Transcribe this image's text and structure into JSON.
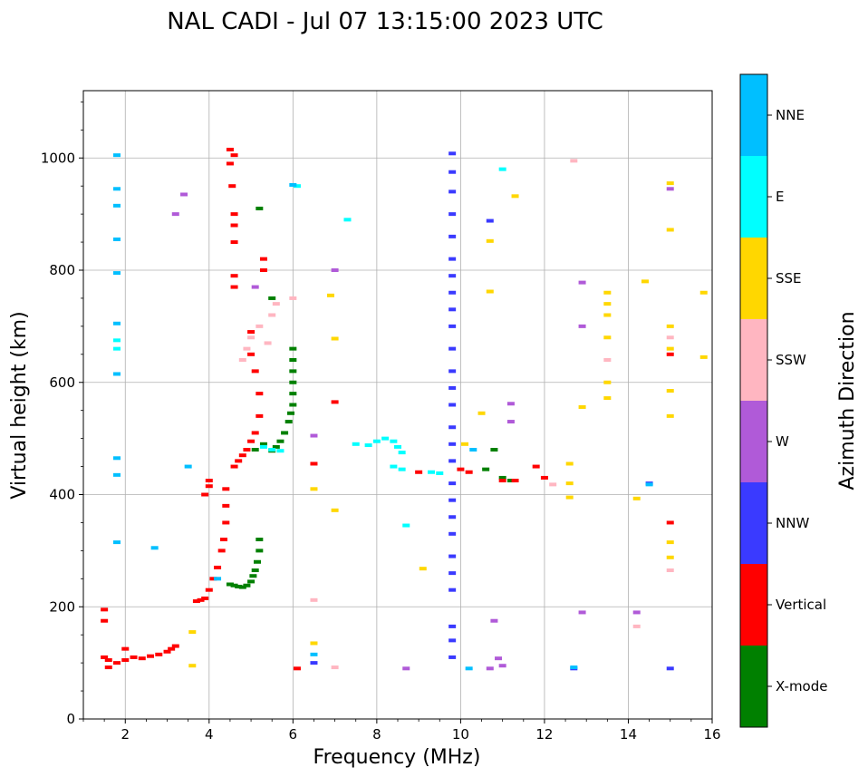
{
  "chart_data": {
    "type": "scatter",
    "title": "NAL CADI - Jul 07 13:15:00 2023 UTC",
    "xlabel": "Frequency (MHz)",
    "ylabel": "Virtual height (km)",
    "xlim": [
      1,
      16
    ],
    "ylim": [
      0,
      1120
    ],
    "xticks": [
      2,
      4,
      6,
      8,
      10,
      12,
      14,
      16
    ],
    "yticks": [
      0,
      200,
      400,
      600,
      800,
      1000
    ],
    "grid": true,
    "colorbar": {
      "label": "Azimuth Direction",
      "categories": [
        {
          "name": "X-mode",
          "color": "#008000"
        },
        {
          "name": "Vertical",
          "color": "#ff0000"
        },
        {
          "name": "NNW",
          "color": "#3a3aff"
        },
        {
          "name": "W",
          "color": "#b05ad8"
        },
        {
          "name": "SSW",
          "color": "#ffb6c1"
        },
        {
          "name": "SSE",
          "color": "#ffd700"
        },
        {
          "name": "E",
          "color": "#00ffff"
        },
        {
          "name": "NNE",
          "color": "#00bfff"
        }
      ]
    },
    "series": [
      {
        "name": "X-mode",
        "points": [
          [
            4.5,
            240
          ],
          [
            4.6,
            238
          ],
          [
            4.7,
            236
          ],
          [
            4.8,
            235
          ],
          [
            4.9,
            238
          ],
          [
            5.0,
            245
          ],
          [
            5.05,
            255
          ],
          [
            5.1,
            265
          ],
          [
            5.15,
            280
          ],
          [
            5.2,
            300
          ],
          [
            5.2,
            320
          ],
          [
            5.1,
            480
          ],
          [
            5.3,
            490
          ],
          [
            5.5,
            478
          ],
          [
            5.6,
            485
          ],
          [
            5.7,
            495
          ],
          [
            5.8,
            510
          ],
          [
            5.9,
            530
          ],
          [
            5.95,
            545
          ],
          [
            6.0,
            560
          ],
          [
            6.0,
            580
          ],
          [
            6.0,
            600
          ],
          [
            6.0,
            620
          ],
          [
            6.0,
            640
          ],
          [
            6.0,
            660
          ],
          [
            5.5,
            750
          ],
          [
            5.2,
            910
          ],
          [
            10.6,
            445
          ],
          [
            11.0,
            430
          ],
          [
            11.2,
            425
          ],
          [
            10.8,
            480
          ]
        ]
      },
      {
        "name": "Vertical",
        "points": [
          [
            1.5,
            110
          ],
          [
            1.6,
            105
          ],
          [
            1.8,
            100
          ],
          [
            2.0,
            105
          ],
          [
            2.2,
            110
          ],
          [
            2.4,
            108
          ],
          [
            2.6,
            112
          ],
          [
            2.8,
            115
          ],
          [
            3.0,
            120
          ],
          [
            3.1,
            125
          ],
          [
            3.2,
            130
          ],
          [
            1.5,
            195
          ],
          [
            1.5,
            175
          ],
          [
            1.6,
            92
          ],
          [
            2.0,
            125
          ],
          [
            3.7,
            210
          ],
          [
            3.8,
            212
          ],
          [
            3.9,
            215
          ],
          [
            4.0,
            230
          ],
          [
            4.1,
            250
          ],
          [
            4.2,
            270
          ],
          [
            4.3,
            300
          ],
          [
            4.35,
            320
          ],
          [
            4.4,
            350
          ],
          [
            4.4,
            380
          ],
          [
            4.4,
            410
          ],
          [
            3.9,
            400
          ],
          [
            4.0,
            415
          ],
          [
            4.0,
            425
          ],
          [
            4.6,
            450
          ],
          [
            4.7,
            460
          ],
          [
            4.8,
            470
          ],
          [
            4.9,
            480
          ],
          [
            5.0,
            495
          ],
          [
            5.1,
            510
          ],
          [
            5.2,
            540
          ],
          [
            5.2,
            580
          ],
          [
            5.1,
            620
          ],
          [
            5.0,
            650
          ],
          [
            5.0,
            690
          ],
          [
            4.6,
            770
          ],
          [
            4.6,
            790
          ],
          [
            4.6,
            850
          ],
          [
            4.6,
            880
          ],
          [
            4.6,
            900
          ],
          [
            4.55,
            950
          ],
          [
            4.5,
            990
          ],
          [
            4.6,
            1005
          ],
          [
            4.5,
            1015
          ],
          [
            5.3,
            800
          ],
          [
            5.3,
            820
          ],
          [
            6.1,
            90
          ],
          [
            6.5,
            455
          ],
          [
            7.0,
            565
          ],
          [
            9.0,
            440
          ],
          [
            10.0,
            445
          ],
          [
            10.2,
            440
          ],
          [
            11.0,
            425
          ],
          [
            11.3,
            425
          ],
          [
            12.0,
            430
          ],
          [
            11.8,
            450
          ],
          [
            15.0,
            650
          ],
          [
            15.0,
            350
          ]
        ]
      },
      {
        "name": "NNW",
        "points": [
          [
            9.8,
            1008
          ],
          [
            9.8,
            975
          ],
          [
            9.8,
            940
          ],
          [
            9.8,
            900
          ],
          [
            9.8,
            860
          ],
          [
            9.8,
            820
          ],
          [
            9.8,
            790
          ],
          [
            9.8,
            760
          ],
          [
            9.8,
            730
          ],
          [
            9.8,
            700
          ],
          [
            9.8,
            660
          ],
          [
            9.8,
            620
          ],
          [
            9.8,
            590
          ],
          [
            9.8,
            560
          ],
          [
            9.8,
            520
          ],
          [
            9.8,
            490
          ],
          [
            9.8,
            460
          ],
          [
            9.8,
            420
          ],
          [
            9.8,
            390
          ],
          [
            9.8,
            360
          ],
          [
            9.8,
            330
          ],
          [
            9.8,
            290
          ],
          [
            9.8,
            260
          ],
          [
            9.8,
            230
          ],
          [
            9.8,
            165
          ],
          [
            9.8,
            140
          ],
          [
            9.8,
            110
          ],
          [
            10.7,
            888
          ],
          [
            14.5,
            420
          ],
          [
            15.0,
            90
          ],
          [
            12.7,
            90
          ],
          [
            6.5,
            100
          ]
        ]
      },
      {
        "name": "W",
        "points": [
          [
            3.2,
            900
          ],
          [
            3.4,
            935
          ],
          [
            5.1,
            770
          ],
          [
            6.5,
            505
          ],
          [
            7.0,
            800
          ],
          [
            8.7,
            90
          ],
          [
            10.7,
            90
          ],
          [
            10.8,
            175
          ],
          [
            10.9,
            108
          ],
          [
            11.0,
            95
          ],
          [
            11.2,
            530
          ],
          [
            11.2,
            562
          ],
          [
            12.9,
            700
          ],
          [
            12.9,
            778
          ],
          [
            12.9,
            190
          ],
          [
            14.2,
            190
          ],
          [
            15.0,
            945
          ]
        ]
      },
      {
        "name": "SSW",
        "points": [
          [
            4.8,
            640
          ],
          [
            4.9,
            660
          ],
          [
            5.0,
            680
          ],
          [
            5.2,
            700
          ],
          [
            5.4,
            670
          ],
          [
            5.5,
            720
          ],
          [
            5.6,
            740
          ],
          [
            6.0,
            750
          ],
          [
            6.5,
            212
          ],
          [
            7.0,
            92
          ],
          [
            12.2,
            418
          ],
          [
            12.7,
            995
          ],
          [
            13.5,
            640
          ],
          [
            14.2,
            165
          ],
          [
            15.0,
            265
          ],
          [
            15.0,
            680
          ]
        ]
      },
      {
        "name": "SSE",
        "points": [
          [
            6.5,
            410
          ],
          [
            6.5,
            135
          ],
          [
            6.9,
            755
          ],
          [
            7.0,
            678
          ],
          [
            7.0,
            372
          ],
          [
            9.1,
            268
          ],
          [
            10.1,
            490
          ],
          [
            10.5,
            545
          ],
          [
            10.7,
            762
          ],
          [
            10.7,
            852
          ],
          [
            11.3,
            932
          ],
          [
            12.6,
            420
          ],
          [
            12.6,
            455
          ],
          [
            12.6,
            395
          ],
          [
            12.9,
            556
          ],
          [
            13.5,
            572
          ],
          [
            13.5,
            600
          ],
          [
            13.5,
            680
          ],
          [
            13.5,
            720
          ],
          [
            13.5,
            740
          ],
          [
            13.5,
            760
          ],
          [
            14.4,
            780
          ],
          [
            14.2,
            393
          ],
          [
            15.0,
            955
          ],
          [
            15.0,
            872
          ],
          [
            15.0,
            700
          ],
          [
            15.0,
            660
          ],
          [
            15.0,
            585
          ],
          [
            15.0,
            540
          ],
          [
            15.0,
            315
          ],
          [
            15.0,
            288
          ],
          [
            15.8,
            760
          ],
          [
            15.8,
            645
          ],
          [
            3.6,
            95
          ],
          [
            3.6,
            155
          ]
        ]
      },
      {
        "name": "E",
        "points": [
          [
            7.8,
            488
          ],
          [
            8.0,
            495
          ],
          [
            8.2,
            500
          ],
          [
            8.4,
            495
          ],
          [
            8.5,
            485
          ],
          [
            8.6,
            475
          ],
          [
            8.4,
            450
          ],
          [
            8.6,
            445
          ],
          [
            8.7,
            345
          ],
          [
            9.3,
            440
          ],
          [
            9.5,
            438
          ],
          [
            7.3,
            890
          ],
          [
            7.5,
            490
          ],
          [
            11.0,
            980
          ],
          [
            1.8,
            675
          ],
          [
            1.8,
            660
          ],
          [
            6.1,
            950
          ],
          [
            5.3,
            485
          ],
          [
            5.5,
            480
          ],
          [
            5.7,
            478
          ]
        ]
      },
      {
        "name": "NNE",
        "points": [
          [
            1.8,
            1005
          ],
          [
            1.8,
            945
          ],
          [
            1.8,
            915
          ],
          [
            1.8,
            855
          ],
          [
            1.8,
            795
          ],
          [
            1.8,
            705
          ],
          [
            1.8,
            615
          ],
          [
            1.8,
            465
          ],
          [
            1.8,
            435
          ],
          [
            1.8,
            315
          ],
          [
            6.0,
            952
          ],
          [
            10.2,
            90
          ],
          [
            14.5,
            418
          ],
          [
            12.7,
            92
          ],
          [
            2.7,
            305
          ],
          [
            3.5,
            450
          ],
          [
            4.2,
            250
          ],
          [
            6.5,
            115
          ],
          [
            10.3,
            480
          ]
        ]
      }
    ]
  }
}
